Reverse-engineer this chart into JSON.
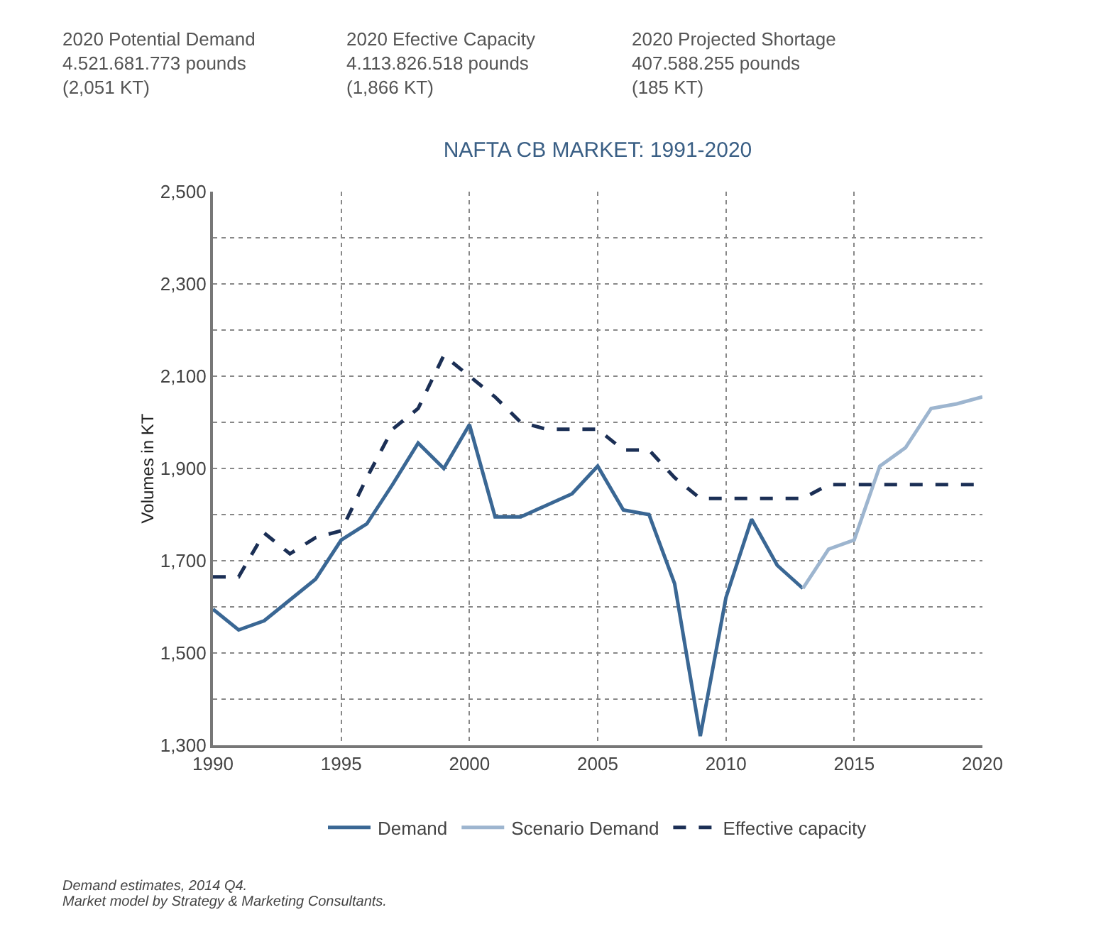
{
  "chart_data": {
    "type": "line",
    "title": "NAFTA CB MARKET: 1991-2020",
    "ylabel": "Volumes in KT",
    "x": [
      1990,
      1991,
      1992,
      1993,
      1994,
      1995,
      1996,
      1997,
      1998,
      1999,
      2000,
      2001,
      2002,
      2003,
      2004,
      2005,
      2006,
      2007,
      2008,
      2009,
      2010,
      2011,
      2012,
      2013,
      2014,
      2015,
      2016,
      2017,
      2018,
      2019,
      2020
    ],
    "series": [
      {
        "name": "Demand",
        "color": "#3a6794",
        "line_style": "solid",
        "values": [
          1595,
          1550,
          1570,
          1615,
          1660,
          1745,
          1780,
          1865,
          1955,
          1900,
          1995,
          1795,
          1795,
          1820,
          1845,
          1905,
          1810,
          1800,
          1650,
          1320,
          1620,
          1790,
          1690,
          1640,
          null,
          null,
          null,
          null,
          null,
          null,
          null
        ]
      },
      {
        "name": "Scenario Demand",
        "color": "#9db5cf",
        "line_style": "solid",
        "values": [
          null,
          null,
          null,
          null,
          null,
          null,
          null,
          null,
          null,
          null,
          null,
          null,
          null,
          null,
          null,
          null,
          null,
          null,
          null,
          null,
          null,
          null,
          null,
          1640,
          1725,
          1745,
          1905,
          1945,
          2030,
          2040,
          2055
        ]
      },
      {
        "name": "Effective capacity",
        "color": "#1b2f55",
        "line_style": "dashed",
        "values": [
          1665,
          1665,
          1760,
          1715,
          1750,
          1765,
          1880,
          1985,
          2030,
          2145,
          2100,
          2055,
          2000,
          1985,
          1985,
          1985,
          1940,
          1940,
          1880,
          1835,
          1835,
          1835,
          1835,
          1835,
          1865,
          1865,
          1865,
          1865,
          1865,
          1865,
          1865
        ]
      }
    ],
    "xlim": [
      1990,
      2020
    ],
    "xticks": [
      1990,
      1995,
      2000,
      2005,
      2010,
      2015,
      2020
    ],
    "ylim": [
      1300,
      2500
    ],
    "yticks": [
      {
        "value": 1300,
        "label": "1,300"
      },
      {
        "value": 1400,
        "label": null
      },
      {
        "value": 1500,
        "label": "1,500"
      },
      {
        "value": 1600,
        "label": null
      },
      {
        "value": 1700,
        "label": "1,700"
      },
      {
        "value": 1800,
        "label": null
      },
      {
        "value": 1900,
        "label": "1,900"
      },
      {
        "value": 2000,
        "label": null
      },
      {
        "value": 2100,
        "label": "2,100"
      },
      {
        "value": 2200,
        "label": null
      },
      {
        "value": 2300,
        "label": "2,300"
      },
      {
        "value": 2400,
        "label": null
      },
      {
        "value": 2500,
        "label": "2,500"
      }
    ],
    "grid": true,
    "legend": "bottom",
    "marker": "none",
    "annotations": [
      "2020 Potential Demand\n4.521.681.773 pounds\n(2,051 KT)",
      "2020 Efective Capacity\n4.113.826.518 pounds\n(1,866 KT)",
      "2020 Projected Shortage\n407.588.255 pounds\n(185 KT)",
      "Demand estimates, 2014 Q4.",
      "Market model by Strategy & Marketing Consultants."
    ]
  }
}
